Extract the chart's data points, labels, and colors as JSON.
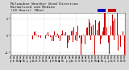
{
  "title_line1": "Milwaukee Weather Wind Direction",
  "title_line2": "Normalized and Median",
  "title_line3": "(24 Hours) (New)",
  "background_color": "#d8d8d8",
  "plot_bg_color": "#ffffff",
  "bar_color": "#cc0000",
  "legend_colors": [
    "#0000bb",
    "#cc0000"
  ],
  "ylim": [
    -4.5,
    5.5
  ],
  "yticks": [
    -4,
    0,
    4
  ],
  "grid_color": "#bbbbbb",
  "title_fontsize": 3.2,
  "tick_fontsize": 2.2,
  "n_points": 200,
  "bar_width": 0.7
}
